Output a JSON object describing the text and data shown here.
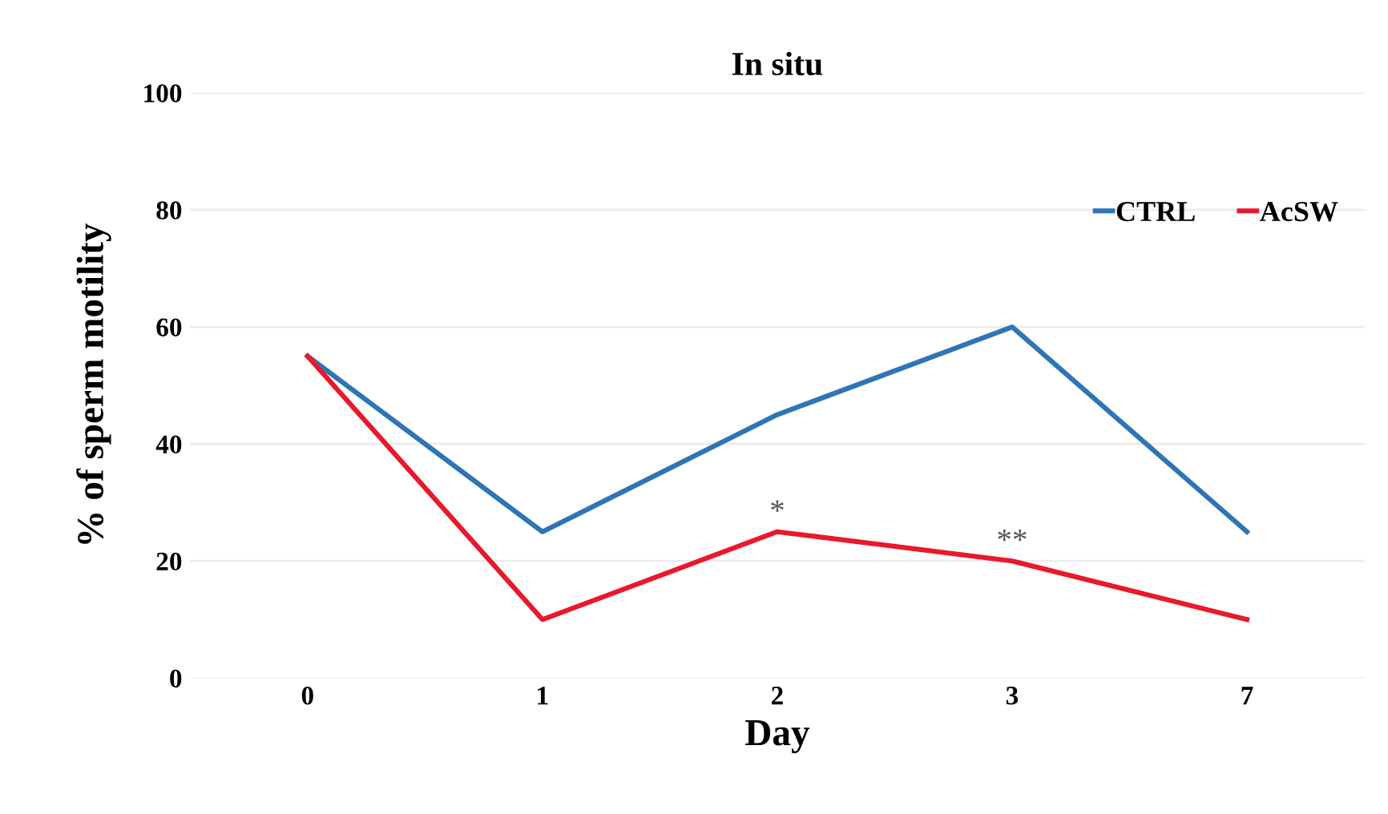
{
  "chart_data": {
    "type": "line",
    "title": "In situ",
    "xlabel": "Day",
    "ylabel": "% of sperm motility",
    "categories": [
      "0",
      "1",
      "2",
      "3",
      "7"
    ],
    "series": [
      {
        "name": "CTRL",
        "color": "#2e75b6",
        "values": [
          55,
          25,
          45,
          60,
          25
        ]
      },
      {
        "name": "AcSW",
        "color": "#e8192c",
        "values": [
          55,
          10,
          25,
          20,
          10
        ]
      }
    ],
    "ylim": [
      0,
      100
    ],
    "yticks": [
      0,
      20,
      40,
      60,
      80,
      100
    ],
    "grid": "y",
    "legend": "top right",
    "marker": "none",
    "annotations": [
      {
        "text": "*",
        "x": "2",
        "y": 25
      },
      {
        "text": "**",
        "x": "3",
        "y": 20
      }
    ]
  }
}
